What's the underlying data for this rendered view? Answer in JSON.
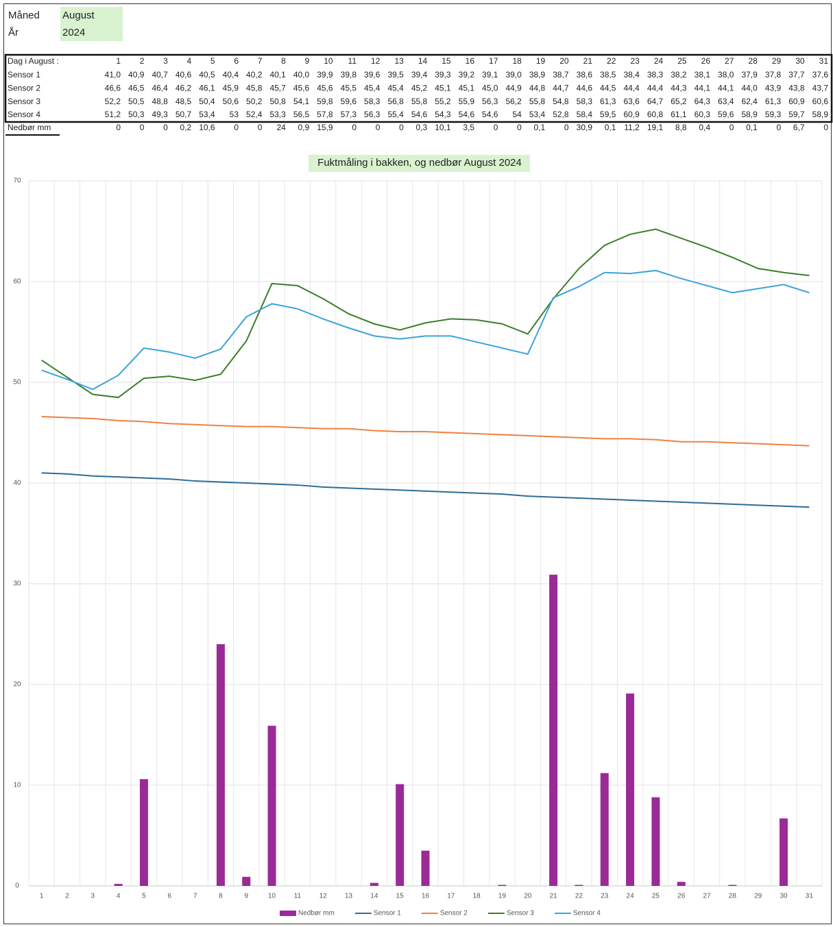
{
  "header": {
    "rows": [
      {
        "label": "Måned",
        "value": "August"
      },
      {
        "label": "År",
        "value": "2024"
      }
    ]
  },
  "table": {
    "columns": [
      "Dag i August :",
      "1",
      "2",
      "3",
      "4",
      "5",
      "6",
      "7",
      "8",
      "9",
      "10",
      "11",
      "12",
      "13",
      "14",
      "15",
      "16",
      "17",
      "18",
      "19",
      "20",
      "21",
      "22",
      "23",
      "24",
      "25",
      "26",
      "27",
      "28",
      "29",
      "30",
      "31"
    ],
    "rows": [
      [
        "Sensor 1",
        "41,0",
        "40,9",
        "40,7",
        "40,6",
        "40,5",
        "40,4",
        "40,2",
        "40,1",
        "40,0",
        "39,9",
        "39,8",
        "39,6",
        "39,5",
        "39,4",
        "39,3",
        "39,2",
        "39,1",
        "39,0",
        "38,9",
        "38,7",
        "38,6",
        "38,5",
        "38,4",
        "38,3",
        "38,2",
        "38,1",
        "38,0",
        "37,9",
        "37,8",
        "37,7",
        "37,6"
      ],
      [
        "Sensor 2",
        "46,6",
        "46,5",
        "46,4",
        "46,2",
        "46,1",
        "45,9",
        "45,8",
        "45,7",
        "45,6",
        "45,6",
        "45,5",
        "45,4",
        "45,4",
        "45,2",
        "45,1",
        "45,1",
        "45,0",
        "44,9",
        "44,8",
        "44,7",
        "44,6",
        "44,5",
        "44,4",
        "44,4",
        "44,3",
        "44,1",
        "44,1",
        "44,0",
        "43,9",
        "43,8",
        "43,7"
      ],
      [
        "Sensor 3",
        "52,2",
        "50,5",
        "48,8",
        "48,5",
        "50,4",
        "50,6",
        "50,2",
        "50,8",
        "54,1",
        "59,8",
        "59,6",
        "58,3",
        "56,8",
        "55,8",
        "55,2",
        "55,9",
        "56,3",
        "56,2",
        "55,8",
        "54,8",
        "58,3",
        "61,3",
        "63,6",
        "64,7",
        "65,2",
        "64,3",
        "63,4",
        "62,4",
        "61,3",
        "60,9",
        "60,6"
      ],
      [
        "Sensor 4",
        "51,2",
        "50,3",
        "49,3",
        "50,7",
        "53,4",
        "53",
        "52,4",
        "53,3",
        "56,5",
        "57,8",
        "57,3",
        "56,3",
        "55,4",
        "54,6",
        "54,3",
        "54,6",
        "54,6",
        "54",
        "53,4",
        "52,8",
        "58,4",
        "59,5",
        "60,9",
        "60,8",
        "61,1",
        "60,3",
        "59,6",
        "58,9",
        "59,3",
        "59,7",
        "58,9"
      ]
    ],
    "total_row": [
      "Nedbør mm",
      "0",
      "0",
      "0",
      "0,2",
      "10,6",
      "0",
      "0",
      "24",
      "0,9",
      "15,9",
      "0",
      "0",
      "0",
      "0,3",
      "10,1",
      "3,5",
      "0",
      "0",
      "0,1",
      "0",
      "30,9",
      "0,1",
      "11,2",
      "19,1",
      "8,8",
      "0,4",
      "0",
      "0,1",
      "0",
      "6,7",
      "0"
    ]
  },
  "chart_data": {
    "type": "bar",
    "title": "Fuktmåling i bakken, og nedbør  August 2024",
    "categories": [
      "1",
      "2",
      "3",
      "4",
      "5",
      "6",
      "7",
      "8",
      "9",
      "10",
      "11",
      "12",
      "13",
      "14",
      "15",
      "16",
      "17",
      "18",
      "19",
      "20",
      "21",
      "22",
      "23",
      "24",
      "25",
      "26",
      "27",
      "28",
      "29",
      "30",
      "31"
    ],
    "series": [
      {
        "name": "Nedbør mm",
        "type": "bar",
        "color": "#9b2a97",
        "values": [
          0,
          0,
          0,
          0.2,
          10.6,
          0,
          0,
          24,
          0.9,
          15.9,
          0,
          0,
          0,
          0.3,
          10.1,
          3.5,
          0,
          0,
          0.1,
          0,
          30.9,
          0.1,
          11.2,
          19.1,
          8.8,
          0.4,
          0,
          0.1,
          0,
          6.7,
          0
        ]
      },
      {
        "name": "Sensor 1",
        "type": "line",
        "color": "#2e6b96",
        "values": [
          41.0,
          40.9,
          40.7,
          40.6,
          40.5,
          40.4,
          40.2,
          40.1,
          40.0,
          39.9,
          39.8,
          39.6,
          39.5,
          39.4,
          39.3,
          39.2,
          39.1,
          39.0,
          38.9,
          38.7,
          38.6,
          38.5,
          38.4,
          38.3,
          38.2,
          38.1,
          38.0,
          37.9,
          37.8,
          37.7,
          37.6
        ]
      },
      {
        "name": "Sensor 2",
        "type": "line",
        "color": "#f08040",
        "values": [
          46.6,
          46.5,
          46.4,
          46.2,
          46.1,
          45.9,
          45.8,
          45.7,
          45.6,
          45.6,
          45.5,
          45.4,
          45.4,
          45.2,
          45.1,
          45.1,
          45.0,
          44.9,
          44.8,
          44.7,
          44.6,
          44.5,
          44.4,
          44.4,
          44.3,
          44.1,
          44.1,
          44.0,
          43.9,
          43.8,
          43.7
        ]
      },
      {
        "name": "Sensor 3",
        "type": "line",
        "color": "#3b7d2a",
        "values": [
          52.2,
          50.5,
          48.8,
          48.5,
          50.4,
          50.6,
          50.2,
          50.8,
          54.1,
          59.8,
          59.6,
          58.3,
          56.8,
          55.8,
          55.2,
          55.9,
          56.3,
          56.2,
          55.8,
          54.8,
          58.3,
          61.3,
          63.6,
          64.7,
          65.2,
          64.3,
          63.4,
          62.4,
          61.3,
          60.9,
          60.6
        ]
      },
      {
        "name": "Sensor 4",
        "type": "line",
        "color": "#3aa3dc",
        "values": [
          51.2,
          50.3,
          49.3,
          50.7,
          53.4,
          53,
          52.4,
          53.3,
          56.5,
          57.8,
          57.3,
          56.3,
          55.4,
          54.6,
          54.3,
          54.6,
          54.6,
          54,
          53.4,
          52.8,
          58.4,
          59.5,
          60.9,
          60.8,
          61.1,
          60.3,
          59.6,
          58.9,
          59.3,
          59.7,
          58.9
        ]
      }
    ],
    "ylim": [
      0,
      70
    ],
    "yticks": [
      0,
      10,
      20,
      30,
      40,
      50,
      60,
      70
    ],
    "grid": true,
    "legend": "bottom"
  }
}
